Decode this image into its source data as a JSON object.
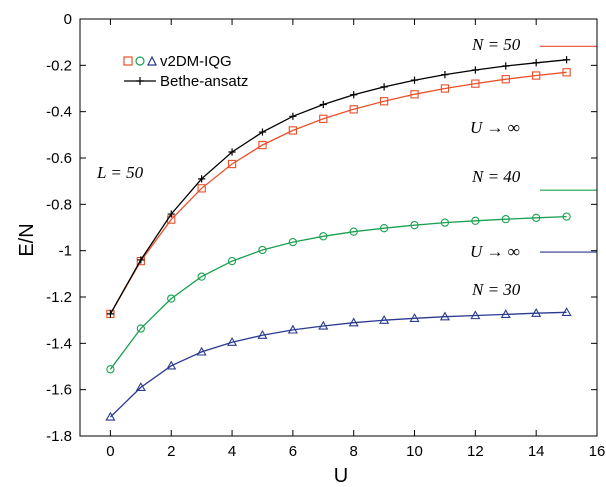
{
  "chart_data": {
    "type": "line",
    "xlabel": "U",
    "ylabel": "E/N",
    "xlim": [
      -1,
      16
    ],
    "ylim": [
      -1.8,
      0
    ],
    "xticks": [
      "0",
      "2",
      "4",
      "6",
      "8",
      "10",
      "12",
      "14",
      "16"
    ],
    "yticks": [
      "0",
      "-0.2",
      "-0.4",
      "-0.6",
      "-0.8",
      "-1",
      "-1.2",
      "-1.4",
      "-1.6",
      "-1.8"
    ],
    "grid": false,
    "legend_position": "top-left",
    "legend": {
      "markers_label": "v2DM-IQG",
      "line_label": "Bethe-ansatz"
    },
    "colors": {
      "n50": "#e8502a",
      "n40": "#1aa050",
      "n30": "#2a3a8f",
      "bethe": "#000000"
    },
    "annotations": {
      "L": "L = 50",
      "n50": "N = 50",
      "n40": "N = 40",
      "n30": "N = 30",
      "uinf": "U → ∞"
    },
    "x": [
      0,
      1,
      2,
      3,
      4,
      5,
      6,
      7,
      8,
      9,
      10,
      11,
      12,
      13,
      14,
      15
    ],
    "series": [
      {
        "marker": "square",
        "color": "#e8502a",
        "values": [
          -1.273,
          -1.045,
          -0.866,
          -0.731,
          -0.626,
          -0.544,
          -0.481,
          -0.431,
          -0.39,
          -0.355,
          -0.325,
          -0.3,
          -0.279,
          -0.26,
          -0.244,
          -0.23
        ],
        "limit": -0.118
      },
      {
        "marker": "circle",
        "color": "#1aa050",
        "values": [
          -1.512,
          -1.336,
          -1.207,
          -1.112,
          -1.045,
          -0.997,
          -0.963,
          -0.938,
          -0.918,
          -0.903,
          -0.89,
          -0.879,
          -0.871,
          -0.864,
          -0.858,
          -0.853
        ],
        "limit": -0.739
      },
      {
        "marker": "triangle",
        "color": "#2a3a8f",
        "values": [
          -1.718,
          -1.59,
          -1.497,
          -1.437,
          -1.395,
          -1.365,
          -1.342,
          -1.325,
          -1.311,
          -1.3,
          -1.292,
          -1.285,
          -1.28,
          -1.275,
          -1.27,
          -1.266
        ],
        "limit": -1.006
      },
      {
        "marker": "plus",
        "color": "#000000",
        "values": [
          -1.273,
          -1.04,
          -0.842,
          -0.69,
          -0.574,
          -0.488,
          -0.42,
          -0.369,
          -0.327,
          -0.293,
          -0.264,
          -0.24,
          -0.22,
          -0.203,
          -0.189,
          -0.176
        ]
      }
    ]
  }
}
